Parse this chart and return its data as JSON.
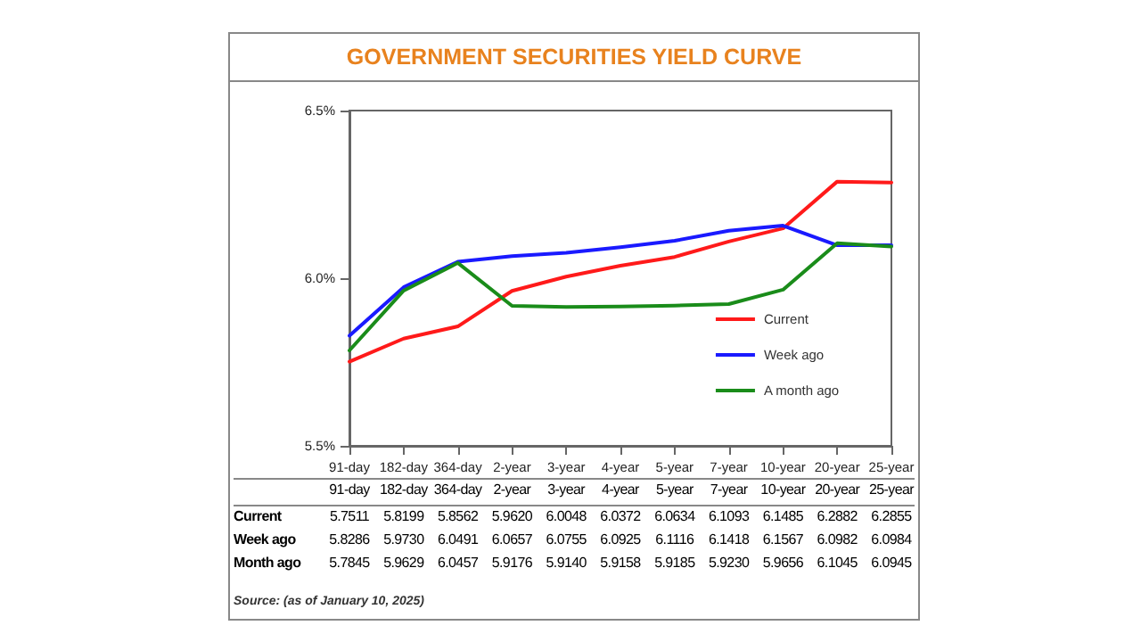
{
  "chart_data": {
    "type": "line",
    "title": "GOVERNMENT SECURITIES YIELD CURVE",
    "categories": [
      "91-day",
      "182-day",
      "364-day",
      "2-year",
      "3-year",
      "4-year",
      "5-year",
      "7-year",
      "10-year",
      "20-year",
      "25-year"
    ],
    "series": [
      {
        "name": "Current",
        "color": "#ff1a1a",
        "values": [
          5.7511,
          5.8199,
          5.8562,
          5.962,
          6.0048,
          6.0372,
          6.0634,
          6.1093,
          6.1485,
          6.2882,
          6.2855
        ],
        "value_labels": [
          "5.7511",
          "5.8199",
          "5.8562",
          "5.9620",
          "6.0048",
          "6.0372",
          "6.0634",
          "6.1093",
          "6.1485",
          "6.2882",
          "6.2855"
        ]
      },
      {
        "name": "Week ago",
        "color": "#1a1aff",
        "values": [
          5.8286,
          5.973,
          6.0491,
          6.0657,
          6.0755,
          6.0925,
          6.1116,
          6.1418,
          6.1567,
          6.0982,
          6.0984
        ],
        "value_labels": [
          "5.8286",
          "5.9730",
          "6.0491",
          "6.0657",
          "6.0755",
          "6.0925",
          "6.1116",
          "6.1418",
          "6.1567",
          "6.0982",
          "6.0984"
        ]
      },
      {
        "name": "A month ago",
        "color": "#1a8c1a",
        "values": [
          5.7845,
          5.9629,
          6.0457,
          5.9176,
          5.914,
          5.9158,
          5.9185,
          5.923,
          5.9656,
          6.1045,
          6.0945
        ],
        "value_labels": [
          "5.7845",
          "5.9629",
          "6.0457",
          "5.9176",
          "5.9140",
          "5.9158",
          "5.9185",
          "5.9230",
          "5.9656",
          "6.1045",
          "6.0945"
        ]
      }
    ],
    "ylim": [
      5.5,
      6.5
    ],
    "yticks": [
      {
        "value": 5.5,
        "label": "5.5%"
      },
      {
        "value": 6.0,
        "label": "6.0%"
      },
      {
        "value": 6.5,
        "label": "6.5%"
      }
    ],
    "grid": false,
    "legend": "bottom right",
    "marker": "none",
    "line_style": "solid",
    "annotations": [
      "Current",
      "Week ago",
      "Month ago",
      "Source: (as of January 10, 2025)"
    ]
  }
}
